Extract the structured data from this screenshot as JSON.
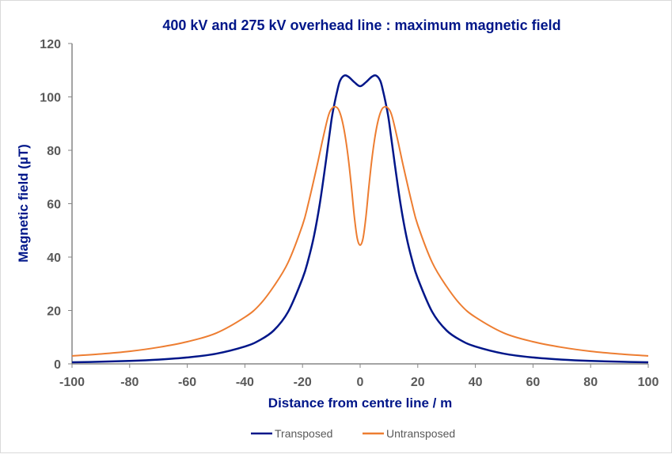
{
  "chart_data": {
    "type": "line",
    "title": "400 kV and 275 kV overhead line : maximum magnetic field",
    "xlabel": "Distance from centre line / m",
    "ylabel": "Magnetic field (µT)",
    "xlim": [
      -100,
      100
    ],
    "ylim": [
      0,
      120
    ],
    "xticks": [
      -100,
      -80,
      -60,
      -40,
      -20,
      0,
      20,
      40,
      60,
      80,
      100
    ],
    "yticks": [
      0,
      20,
      40,
      60,
      80,
      100,
      120
    ],
    "grid": false,
    "legend": "bottom",
    "series": [
      {
        "name": "Transposed",
        "color": "#001689",
        "x": [
          -100,
          -90,
          -80,
          -70,
          -60,
          -50,
          -40,
          -35,
          -30,
          -25,
          -20,
          -18,
          -16,
          -14,
          -12,
          -10,
          -9,
          -8,
          -7,
          -5.5,
          -4,
          -2,
          0,
          2,
          4,
          5.5,
          7,
          8,
          9,
          10,
          12,
          14,
          16,
          18,
          20,
          25,
          30,
          35,
          40,
          50,
          60,
          70,
          80,
          90,
          100
        ],
        "y": [
          0.6,
          0.8,
          1.1,
          1.6,
          2.4,
          3.8,
          6.5,
          8.8,
          12.5,
          19.5,
          32,
          39,
          48,
          60,
          75,
          91,
          97,
          102,
          106,
          108,
          107.5,
          105.5,
          104,
          105.5,
          107.5,
          108,
          106,
          102,
          97,
          91,
          75,
          60,
          48,
          39,
          32,
          19.5,
          12.5,
          8.8,
          6.5,
          3.8,
          2.4,
          1.6,
          1.1,
          0.8,
          0.6
        ]
      },
      {
        "name": "Untransposed",
        "color": "#ED7D31",
        "x": [
          -100,
          -90,
          -80,
          -70,
          -60,
          -50,
          -40,
          -35,
          -30,
          -25,
          -20,
          -18,
          -15,
          -13,
          -11,
          -9.5,
          -8,
          -7,
          -6,
          -5,
          -4,
          -3,
          -2,
          -1,
          0,
          1,
          2,
          3,
          4,
          5,
          6,
          7,
          8,
          9.5,
          11,
          13,
          15,
          18,
          20,
          25,
          30,
          35,
          40,
          50,
          60,
          70,
          80,
          90,
          100
        ],
        "y": [
          3,
          3.7,
          4.7,
          6.2,
          8.3,
          11.5,
          17.5,
          22,
          29,
          38,
          52,
          60,
          74,
          84,
          93,
          96,
          96,
          94,
          90,
          84,
          76,
          66,
          55,
          47,
          44.5,
          47,
          55,
          66,
          76,
          84,
          90,
          94,
          96,
          96,
          93,
          84,
          74,
          60,
          52,
          38,
          29,
          22,
          17.5,
          11.5,
          8.3,
          6.2,
          4.7,
          3.7,
          3
        ]
      }
    ]
  }
}
